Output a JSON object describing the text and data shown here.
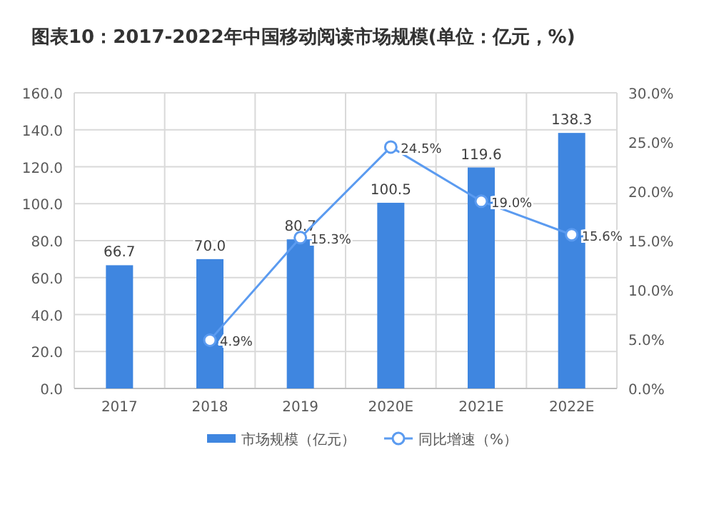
{
  "chart_data": {
    "type": "bar",
    "title": "图表10：2017-2022年中国移动阅读市场规模(单位：亿元，%)",
    "categories": [
      "2017",
      "2018",
      "2019",
      "2020E",
      "2021E",
      "2022E"
    ],
    "series": [
      {
        "name": "市场规模（亿元）",
        "color": "#3f86e0",
        "values": [
          66.7,
          70.0,
          80.7,
          100.5,
          119.6,
          138.3
        ],
        "value_labels": [
          "66.7",
          "70.0",
          "80.7",
          "100.5",
          "119.6",
          "138.3"
        ]
      },
      {
        "name": "同比增速（%）",
        "type": "line",
        "axis": "y2",
        "color": "#5b9bf0",
        "marker": "circle",
        "values": [
          null,
          4.9,
          15.3,
          24.5,
          19.0,
          15.6
        ],
        "value_labels": [
          null,
          "4.9%",
          "15.3%",
          "24.5%",
          "19.0%",
          "15.6%"
        ]
      }
    ],
    "ylim": [
      0,
      160
    ],
    "yticks": [
      {
        "value": 0,
        "label": "0.0"
      },
      {
        "value": 20,
        "label": "20.0"
      },
      {
        "value": 40,
        "label": "40.0"
      },
      {
        "value": 60,
        "label": "60.0"
      },
      {
        "value": 80,
        "label": "80.0"
      },
      {
        "value": 100,
        "label": "100.0"
      },
      {
        "value": 120,
        "label": "120.0"
      },
      {
        "value": 140,
        "label": "140.0"
      },
      {
        "value": 160,
        "label": "160.0"
      }
    ],
    "y2lim": [
      0,
      30
    ],
    "y2ticks": [
      {
        "value": 0,
        "label": "0.0%"
      },
      {
        "value": 5,
        "label": "5.0%"
      },
      {
        "value": 10,
        "label": "10.0%"
      },
      {
        "value": 15,
        "label": "15.0%"
      },
      {
        "value": 20,
        "label": "20.0%"
      },
      {
        "value": 25,
        "label": "25.0%"
      },
      {
        "value": 30,
        "label": "30.0%"
      }
    ],
    "grid": true,
    "legend": "bottom"
  }
}
